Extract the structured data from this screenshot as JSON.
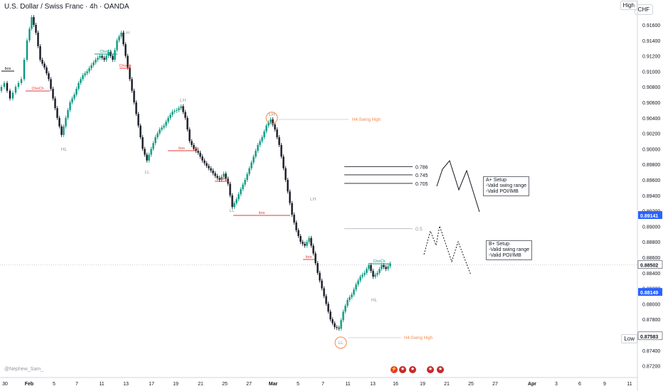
{
  "header": {
    "title": "U.S. Dollar / Swiss Franc · 4h · OANDA",
    "currency": "CHF",
    "high_tag": "High",
    "low_tag": "Low",
    "watermark": "@Nephew_Sam_"
  },
  "chart_data": {
    "type": "candlestick",
    "ylim": [
      0.8711,
      0.92
    ],
    "y_ticks": [
      "0.91600",
      "0.91400",
      "0.91200",
      "0.91000",
      "0.90800",
      "0.90600",
      "0.90400",
      "0.90200",
      "0.90000",
      "0.89800",
      "0.89600",
      "0.89400",
      "0.89200",
      "0.89000",
      "0.88800",
      "0.88600",
      "0.88400",
      "0.88200",
      "0.88000",
      "0.87800",
      "0.87600",
      "0.87400",
      "0.87200"
    ],
    "x_ticks": [
      "30",
      "Feb",
      "5",
      "7",
      "11",
      "13",
      "17",
      "19",
      "21",
      "25",
      "27",
      "Mar",
      "5",
      "7",
      "11",
      "13",
      "16",
      "19",
      "21",
      "25",
      "27",
      "Apr",
      "3",
      "6",
      "9",
      "11"
    ],
    "price_labels": [
      {
        "text": "0.89141",
        "value": 0.89141,
        "color": "#2962ff"
      },
      {
        "text": "0.88502",
        "value": 0.88502,
        "color": "#131722"
      },
      {
        "text": "0.88149",
        "value": 0.88149,
        "color": "#2962ff"
      },
      {
        "text": "0.87583",
        "value": 0.87583,
        "color": "#ffffff"
      }
    ],
    "fib_levels": [
      {
        "label": "0.786",
        "value": 0.89771
      },
      {
        "label": "0.745",
        "value": 0.89665
      },
      {
        "label": "0.705",
        "value": 0.89555
      },
      {
        "label": "0.5",
        "value": 0.8897
      }
    ],
    "annotations": {
      "swing_high_label": "H4-Swing High",
      "swing_low_label": "H4-Swing High",
      "structure": [
        "bos",
        "ChoCh",
        "ChoCh",
        "ChoCh",
        "bos",
        "bos",
        "bos",
        "bos",
        "bos",
        "ChoCh"
      ],
      "swing_points": [
        "HL",
        "LH",
        "LH",
        "LL",
        "LH",
        "LH",
        "LL",
        "LL",
        "HL"
      ]
    },
    "setups": [
      {
        "title": "A+ Setup",
        "lines": [
          "-Valid swing range",
          "-Valid POI/IMB"
        ]
      },
      {
        "title": "B+ Setup",
        "lines": [
          "-Valid swing range",
          "-Valid POI/IMB"
        ]
      }
    ]
  }
}
